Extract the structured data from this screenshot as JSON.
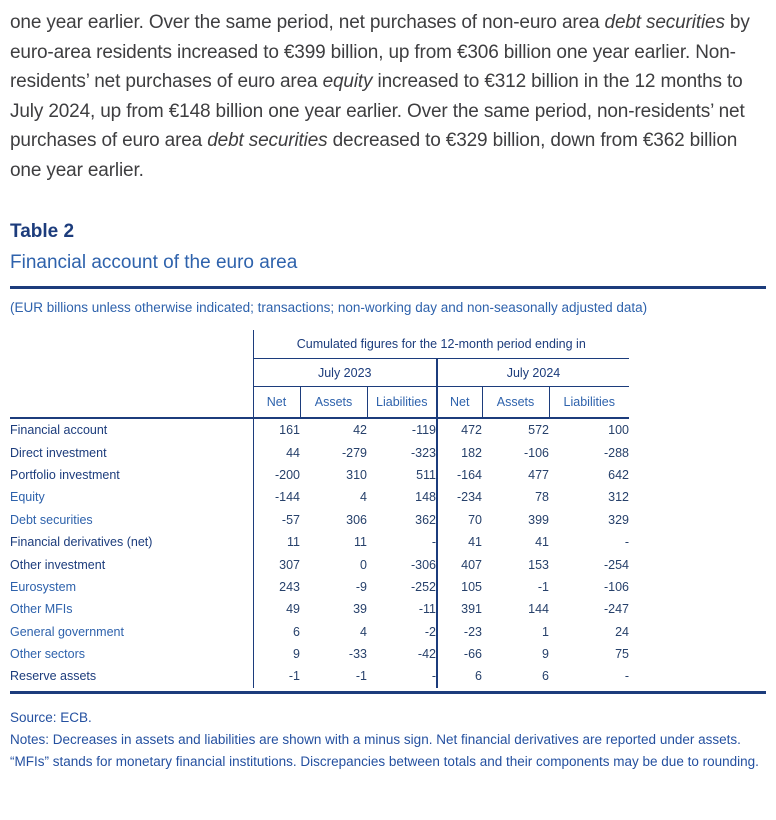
{
  "paragraph": {
    "segments": [
      {
        "text": "one year earlier. Over the same period, net purchases of non-euro area ",
        "italic": false
      },
      {
        "text": "debt securities",
        "italic": true
      },
      {
        "text": " by euro-area residents increased to €399 billion, up from €306 billion one year earlier. Non-residents’ net purchases of euro area ",
        "italic": false
      },
      {
        "text": "equity",
        "italic": true
      },
      {
        "text": " increased to €312 billion in the 12 months to July 2024, up from €148 billion one year earlier. Over the same period, non-residents’ net purchases of euro area ",
        "italic": false
      },
      {
        "text": "debt securities",
        "italic": true
      },
      {
        "text": " decreased to €329 billion, down from €362 billion one year earlier.",
        "italic": false
      }
    ]
  },
  "table": {
    "label": "Table 2",
    "title": "Financial account of the euro area",
    "caption": "(EUR billions unless otherwise indicated; transactions; non-working day and non-seasonally adjusted data)",
    "header": {
      "top": "Cumulated figures for the 12-month period ending in",
      "groups": [
        "July 2023",
        "July 2024"
      ],
      "columns": [
        "Net",
        "Assets",
        "Liabilities",
        "Net",
        "Assets",
        "Liabilities"
      ]
    },
    "rows": [
      {
        "label": "Financial account",
        "bold": true,
        "values": [
          "161",
          "42",
          "-119",
          "472",
          "572",
          "100"
        ]
      },
      {
        "label": "Direct investment",
        "bold": true,
        "values": [
          "44",
          "-279",
          "-323",
          "182",
          "-106",
          "-288"
        ]
      },
      {
        "label": "Portfolio investment",
        "bold": true,
        "values": [
          "-200",
          "310",
          "511",
          "-164",
          "477",
          "642"
        ]
      },
      {
        "label": "Equity",
        "bold": false,
        "values": [
          "-144",
          "4",
          "148",
          "-234",
          "78",
          "312"
        ]
      },
      {
        "label": "Debt securities",
        "bold": false,
        "values": [
          "-57",
          "306",
          "362",
          "70",
          "399",
          "329"
        ]
      },
      {
        "label": "Financial derivatives (net)",
        "bold": true,
        "values": [
          "11",
          "11",
          "-",
          "41",
          "41",
          "-"
        ]
      },
      {
        "label": "Other investment",
        "bold": true,
        "values": [
          "307",
          "0",
          "-306",
          "407",
          "153",
          "-254"
        ]
      },
      {
        "label": "Eurosystem",
        "bold": false,
        "values": [
          "243",
          "-9",
          "-252",
          "105",
          "-1",
          "-106"
        ]
      },
      {
        "label": "Other MFIs",
        "bold": false,
        "values": [
          "49",
          "39",
          "-11",
          "391",
          "144",
          "-247"
        ]
      },
      {
        "label": "General government",
        "bold": false,
        "values": [
          "6",
          "4",
          "-2",
          "-23",
          "1",
          "24"
        ]
      },
      {
        "label": "Other sectors",
        "bold": false,
        "values": [
          "9",
          "-33",
          "-42",
          "-66",
          "9",
          "75"
        ]
      },
      {
        "label": "Reserve assets",
        "bold": true,
        "values": [
          "-1",
          "-1",
          "-",
          "6",
          "6",
          "-"
        ]
      }
    ],
    "source": "Source: ECB.",
    "notes": "Notes: Decreases in assets and liabilities are shown with a minus sign. Net financial derivatives are reported under assets. “MFIs” stands for monetary financial institutions. Discrepancies between totals and their components may be due to rounding."
  },
  "colors": {
    "heading_navy": "#1c3c7c",
    "medium_blue": "#2e62ac",
    "notes_blue": "#2450a0",
    "body_text": "#3e3e40",
    "number_text": "#27416b"
  }
}
